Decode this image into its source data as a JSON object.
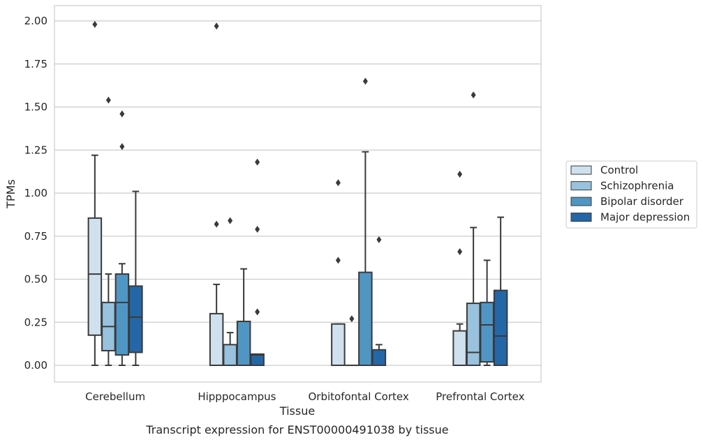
{
  "chart_data": {
    "type": "boxplot",
    "caption": "Transcript expression for ENST00000491038 by tissue",
    "xlabel": "Tissue",
    "ylabel": "TPMs",
    "ylim": [
      -0.1,
      2.08
    ],
    "yticks": [
      0.0,
      0.25,
      0.5,
      0.75,
      1.0,
      1.25,
      1.5,
      1.75,
      2.0
    ],
    "ytick_labels": [
      "0.00",
      "0.25",
      "0.50",
      "0.75",
      "1.00",
      "1.25",
      "1.50",
      "1.75",
      "2.00"
    ],
    "categories": [
      "Cerebellum",
      "Hipppocampus",
      "Orbitofontal Cortex",
      "Prefrontal Cortex"
    ],
    "grid": "horizontal",
    "legend_position": "right",
    "series": [
      {
        "name": "Control",
        "color": "#cfe0ef",
        "boxes": [
          {
            "whislo": 0.0,
            "q1": 0.175,
            "med": 0.53,
            "q3": 0.855,
            "whishi": 1.22,
            "fliers": [
              1.98
            ]
          },
          {
            "whislo": 0.0,
            "q1": 0.0,
            "med": 0.0,
            "q3": 0.3,
            "whishi": 0.47,
            "fliers": [
              0.82,
              1.97
            ]
          },
          {
            "whislo": 0.0,
            "q1": 0.0,
            "med": 0.0,
            "q3": 0.24,
            "whishi": 0.24,
            "fliers": [
              0.61,
              1.06
            ]
          },
          {
            "whislo": 0.0,
            "q1": 0.0,
            "med": 0.0,
            "q3": 0.2,
            "whishi": 0.24,
            "fliers": [
              0.66,
              1.11
            ]
          }
        ]
      },
      {
        "name": "Schizophrenia",
        "color": "#98c2de",
        "boxes": [
          {
            "whislo": 0.0,
            "q1": 0.085,
            "med": 0.225,
            "q3": 0.365,
            "whishi": 0.53,
            "fliers": [
              1.54
            ]
          },
          {
            "whislo": 0.0,
            "q1": 0.0,
            "med": 0.0,
            "q3": 0.12,
            "whishi": 0.19,
            "fliers": [
              0.84
            ]
          },
          {
            "whislo": 0.0,
            "q1": 0.0,
            "med": 0.0,
            "q3": 0.0,
            "whishi": 0.0,
            "fliers": [
              0.27
            ]
          },
          {
            "whislo": 0.0,
            "q1": 0.0,
            "med": 0.075,
            "q3": 0.36,
            "whishi": 0.8,
            "fliers": [
              1.57
            ]
          }
        ]
      },
      {
        "name": "Bipolar disorder",
        "color": "#5096c4",
        "boxes": [
          {
            "whislo": 0.0,
            "q1": 0.06,
            "med": 0.365,
            "q3": 0.53,
            "whishi": 0.59,
            "fliers": [
              1.27,
              1.46
            ]
          },
          {
            "whislo": 0.0,
            "q1": 0.0,
            "med": 0.0,
            "q3": 0.255,
            "whishi": 0.56,
            "fliers": []
          },
          {
            "whislo": 0.0,
            "q1": 0.0,
            "med": 0.0,
            "q3": 0.54,
            "whishi": 1.24,
            "fliers": [
              1.65
            ]
          },
          {
            "whislo": 0.0,
            "q1": 0.02,
            "med": 0.235,
            "q3": 0.365,
            "whishi": 0.61,
            "fliers": []
          }
        ]
      },
      {
        "name": "Major depression",
        "color": "#2467a8",
        "boxes": [
          {
            "whislo": 0.0,
            "q1": 0.075,
            "med": 0.28,
            "q3": 0.46,
            "whishi": 1.01,
            "fliers": []
          },
          {
            "whislo": 0.0,
            "q1": 0.0,
            "med": 0.06,
            "q3": 0.065,
            "whishi": 0.065,
            "fliers": [
              0.31,
              0.79,
              1.18
            ]
          },
          {
            "whislo": 0.0,
            "q1": 0.0,
            "med": 0.0,
            "q3": 0.09,
            "whishi": 0.12,
            "fliers": [
              0.73
            ]
          },
          {
            "whislo": 0.0,
            "q1": 0.0,
            "med": 0.17,
            "q3": 0.435,
            "whishi": 0.86,
            "fliers": []
          }
        ]
      }
    ]
  }
}
